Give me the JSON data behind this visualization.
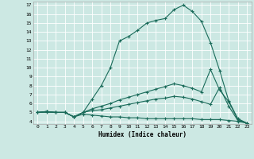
{
  "bg_color": "#cce8e3",
  "grid_color": "#ffffff",
  "line_color": "#1a6b5a",
  "xlabel": "Humidex (Indice chaleur)",
  "xlim_min": -0.5,
  "xlim_max": 23.5,
  "ylim_min": 3.7,
  "ylim_max": 17.4,
  "xticks": [
    0,
    1,
    2,
    3,
    4,
    5,
    6,
    7,
    8,
    9,
    10,
    11,
    12,
    13,
    14,
    15,
    16,
    17,
    18,
    19,
    20,
    21,
    22,
    23
  ],
  "yticks": [
    4,
    5,
    6,
    7,
    8,
    9,
    10,
    11,
    12,
    13,
    14,
    15,
    16,
    17
  ],
  "line1_x": [
    0,
    1,
    2,
    3,
    4,
    5,
    6,
    7,
    8,
    9,
    10,
    11,
    12,
    13,
    14,
    15,
    16,
    17,
    18,
    19,
    20,
    21,
    22,
    23
  ],
  "line1_y": [
    5.0,
    5.1,
    5.0,
    5.0,
    4.5,
    5.0,
    6.5,
    8.0,
    10.0,
    13.0,
    13.5,
    14.2,
    15.0,
    15.3,
    15.5,
    16.5,
    17.0,
    16.3,
    15.2,
    12.8,
    9.7,
    6.3,
    4.3,
    3.8
  ],
  "line2_x": [
    0,
    1,
    2,
    3,
    4,
    5,
    6,
    7,
    8,
    9,
    10,
    11,
    12,
    13,
    14,
    15,
    16,
    17,
    18,
    19,
    20,
    21,
    22,
    23
  ],
  "line2_y": [
    5.0,
    5.1,
    5.0,
    5.0,
    4.5,
    5.0,
    5.4,
    5.7,
    6.0,
    6.4,
    6.7,
    7.0,
    7.3,
    7.6,
    7.9,
    8.2,
    8.0,
    7.7,
    7.3,
    9.8,
    7.5,
    6.2,
    4.2,
    3.8
  ],
  "line3_x": [
    0,
    1,
    2,
    3,
    4,
    5,
    6,
    7,
    8,
    9,
    10,
    11,
    12,
    13,
    14,
    15,
    16,
    17,
    18,
    19,
    20,
    21,
    22,
    23
  ],
  "line3_y": [
    5.0,
    5.1,
    5.0,
    5.0,
    4.5,
    5.0,
    5.2,
    5.3,
    5.5,
    5.7,
    5.9,
    6.1,
    6.3,
    6.5,
    6.6,
    6.8,
    6.7,
    6.5,
    6.2,
    5.9,
    7.8,
    5.7,
    4.1,
    3.8
  ],
  "line4_x": [
    0,
    1,
    2,
    3,
    4,
    5,
    6,
    7,
    8,
    9,
    10,
    11,
    12,
    13,
    14,
    15,
    16,
    17,
    18,
    19,
    20,
    21,
    22,
    23
  ],
  "line4_y": [
    5.0,
    5.0,
    5.0,
    5.0,
    4.5,
    4.8,
    4.7,
    4.6,
    4.5,
    4.5,
    4.4,
    4.4,
    4.3,
    4.3,
    4.3,
    4.3,
    4.3,
    4.3,
    4.2,
    4.2,
    4.2,
    4.1,
    4.0,
    3.8
  ]
}
